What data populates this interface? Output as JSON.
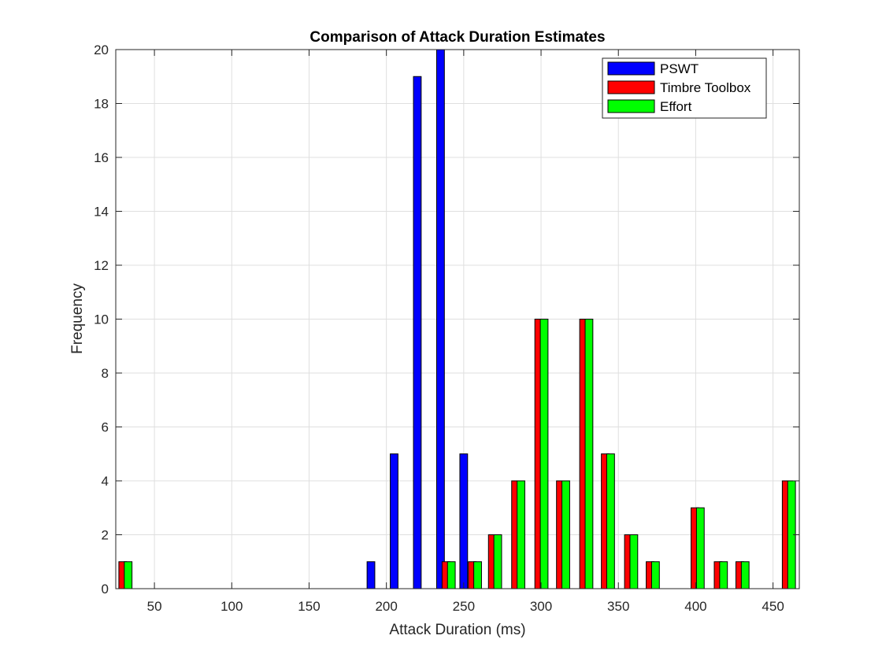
{
  "chart_data": {
    "type": "bar",
    "title": "Comparison of Attack Duration Estimates",
    "xlabel": "Attack Duration (ms)",
    "ylabel": "Frequency",
    "xlim": [
      25,
      467
    ],
    "ylim": [
      0,
      20
    ],
    "xticks": [
      50,
      100,
      150,
      200,
      250,
      300,
      350,
      400,
      450
    ],
    "yticks": [
      0,
      2,
      4,
      6,
      8,
      10,
      12,
      14,
      16,
      18,
      20
    ],
    "grid": true,
    "legend_position": "top-right",
    "bar_width": 5,
    "series": [
      {
        "name": "PSWT",
        "color": "#0000ff",
        "points": [
          {
            "x": 190,
            "y": 1
          },
          {
            "x": 205,
            "y": 5
          },
          {
            "x": 220,
            "y": 19
          },
          {
            "x": 235,
            "y": 20
          },
          {
            "x": 250,
            "y": 5
          }
        ]
      },
      {
        "name": "Timbre Toolbox",
        "color": "#ff0000",
        "points": [
          {
            "x": 29.5,
            "y": 1
          },
          {
            "x": 238.5,
            "y": 1
          },
          {
            "x": 255.5,
            "y": 1
          },
          {
            "x": 268.5,
            "y": 2
          },
          {
            "x": 283.5,
            "y": 4
          },
          {
            "x": 298.5,
            "y": 10
          },
          {
            "x": 312.5,
            "y": 4
          },
          {
            "x": 327.5,
            "y": 10
          },
          {
            "x": 341.5,
            "y": 5
          },
          {
            "x": 356.5,
            "y": 2
          },
          {
            "x": 370.5,
            "y": 1
          },
          {
            "x": 399.5,
            "y": 3
          },
          {
            "x": 414.5,
            "y": 1
          },
          {
            "x": 428.5,
            "y": 1
          },
          {
            "x": 458.5,
            "y": 4
          }
        ]
      },
      {
        "name": "Effort",
        "color": "#00ff00",
        "points": [
          {
            "x": 33,
            "y": 1
          },
          {
            "x": 242,
            "y": 1
          },
          {
            "x": 259,
            "y": 1
          },
          {
            "x": 272,
            "y": 2
          },
          {
            "x": 287,
            "y": 4
          },
          {
            "x": 302,
            "y": 10
          },
          {
            "x": 316,
            "y": 4
          },
          {
            "x": 331,
            "y": 10
          },
          {
            "x": 345,
            "y": 5
          },
          {
            "x": 360,
            "y": 2
          },
          {
            "x": 374,
            "y": 1
          },
          {
            "x": 403,
            "y": 3
          },
          {
            "x": 418,
            "y": 1
          },
          {
            "x": 432,
            "y": 1
          },
          {
            "x": 462,
            "y": 4
          }
        ]
      }
    ]
  }
}
